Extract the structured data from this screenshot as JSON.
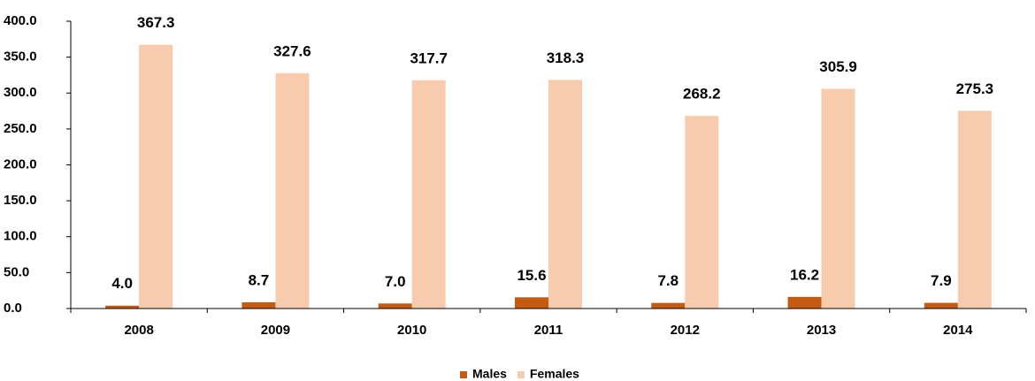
{
  "chart_data": {
    "type": "bar",
    "categories": [
      "2008",
      "2009",
      "2010",
      "2011",
      "2012",
      "2013",
      "2014"
    ],
    "series": [
      {
        "name": "Males",
        "color": "#c55a11",
        "values": [
          4.0,
          8.7,
          7.0,
          15.6,
          7.8,
          16.2,
          7.9
        ],
        "value_labels": [
          "4.0",
          "8.7",
          "7.0",
          "15.6",
          "7.8",
          "16.2",
          "7.9"
        ]
      },
      {
        "name": "Females",
        "color": "#f8cbad",
        "values": [
          367.3,
          327.6,
          317.7,
          318.3,
          268.2,
          305.9,
          275.3
        ],
        "value_labels": [
          "367.3",
          "327.6",
          "317.7",
          "318.3",
          "268.2",
          "305.9",
          "275.3"
        ]
      }
    ],
    "ylim": [
      0,
      400
    ],
    "yticks": [
      {
        "value": 0,
        "label": "0.0"
      },
      {
        "value": 50,
        "label": "50.0"
      },
      {
        "value": 100,
        "label": "100.0"
      },
      {
        "value": 150,
        "label": "150.0"
      },
      {
        "value": 200,
        "label": "200.0"
      },
      {
        "value": 250,
        "label": "250.0"
      },
      {
        "value": 300,
        "label": "300.0"
      },
      {
        "value": 350,
        "label": "350.0"
      },
      {
        "value": 400,
        "label": "400.0"
      }
    ],
    "legend": "bottom"
  }
}
